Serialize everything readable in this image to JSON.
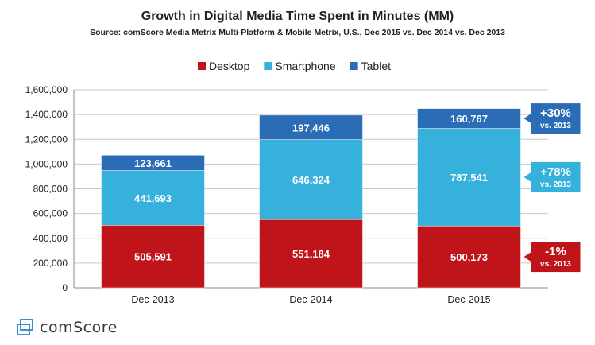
{
  "chart_data": {
    "type": "bar",
    "stacked": true,
    "title": "Growth in Digital Media Time Spent in Minutes (MM)",
    "subtitle": "Source: comScore Media Metrix Multi-Platform & Mobile Metrix, U.S., Dec 2015 vs. Dec 2014 vs. Dec 2013",
    "categories": [
      "Dec-2013",
      "Dec-2014",
      "Dec-2015"
    ],
    "series": [
      {
        "name": "Desktop",
        "color": "#c0141b",
        "values": [
          505591,
          551184,
          500173
        ],
        "labels": [
          "505,591",
          "551,184",
          "500,173"
        ]
      },
      {
        "name": "Smartphone",
        "color": "#36b1dc",
        "values": [
          441693,
          646324,
          787541
        ],
        "labels": [
          "441,693",
          "646,324",
          "787,541"
        ]
      },
      {
        "name": "Tablet",
        "color": "#2a6db6",
        "values": [
          123661,
          197446,
          160767
        ],
        "labels": [
          "123,661",
          "197,446",
          "160,767"
        ]
      }
    ],
    "ylim": [
      0,
      1600000
    ],
    "yticks": [
      0,
      200000,
      400000,
      600000,
      800000,
      1000000,
      1200000,
      1400000,
      1600000
    ],
    "ytick_labels": [
      "0",
      "200,000",
      "400,000",
      "600,000",
      "800,000",
      "1,000,000",
      "1,200,000",
      "1,400,000",
      "1,600,000"
    ],
    "grid": true,
    "legend_position": "top",
    "callouts": [
      {
        "series": "Tablet",
        "value": "+30%",
        "note": "vs. 2013",
        "color": "#2a6db6"
      },
      {
        "series": "Smartphone",
        "value": "+78%",
        "note": "vs. 2013",
        "color": "#36b1dc"
      },
      {
        "series": "Desktop",
        "value": "-1%",
        "note": "vs. 2013",
        "color": "#c0141b"
      }
    ]
  },
  "logo": {
    "text": "comScore",
    "icon": "comscore-logo-icon"
  }
}
